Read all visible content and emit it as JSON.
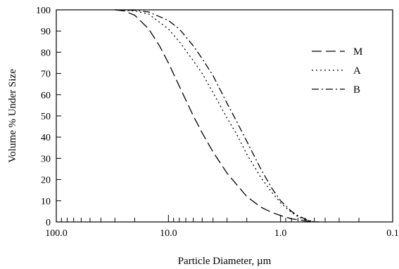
{
  "chart_data": {
    "type": "line",
    "xlabel": "Particle Diameter,  µm",
    "ylabel": "Volume % Under Size",
    "x_scale": "log",
    "x_reversed": true,
    "xlim": [
      100,
      0.1
    ],
    "ylim": [
      0,
      100
    ],
    "x_tick_labels": [
      "100.0",
      "10.0",
      "1.0",
      "0.1"
    ],
    "y_tick_labels": [
      "0",
      "10",
      "20",
      "30",
      "40",
      "50",
      "60",
      "70",
      "80",
      "90",
      "100"
    ],
    "grid": false,
    "legend_position": "top-right",
    "series": [
      {
        "name": "M",
        "dash": "long-dash",
        "x": [
          30,
          25,
          20,
          15,
          12,
          10,
          8,
          6,
          5,
          4,
          3,
          2,
          1.5,
          1.2,
          1,
          0.8,
          0.6,
          0.5,
          0.45
        ],
        "y": [
          100,
          99.5,
          97.5,
          91,
          83,
          75,
          64,
          50,
          42,
          33,
          23,
          12,
          7,
          4.5,
          3,
          1.5,
          0.5,
          0.1,
          0
        ]
      },
      {
        "name": "A",
        "dash": "dotted",
        "x": [
          30,
          20,
          15,
          10,
          8,
          6,
          5,
          4,
          3,
          2.5,
          2,
          1.5,
          1.2,
          1,
          0.8,
          0.7,
          0.6,
          0.5
        ],
        "y": [
          100,
          99.5,
          98,
          91,
          85,
          76,
          70,
          61,
          49,
          42,
          32,
          21,
          14,
          9,
          4.5,
          2.5,
          1,
          0
        ]
      },
      {
        "name": "B",
        "dash": "dash-dot",
        "x": [
          30,
          20,
          15,
          10,
          8,
          6,
          5,
          4,
          3,
          2.5,
          2,
          1.5,
          1.2,
          1,
          0.8,
          0.7,
          0.6,
          0.5
        ],
        "y": [
          100,
          99.8,
          99,
          95,
          91,
          83,
          77,
          69,
          56,
          48,
          38,
          25,
          16,
          10,
          5,
          3,
          1.3,
          0
        ]
      }
    ]
  }
}
